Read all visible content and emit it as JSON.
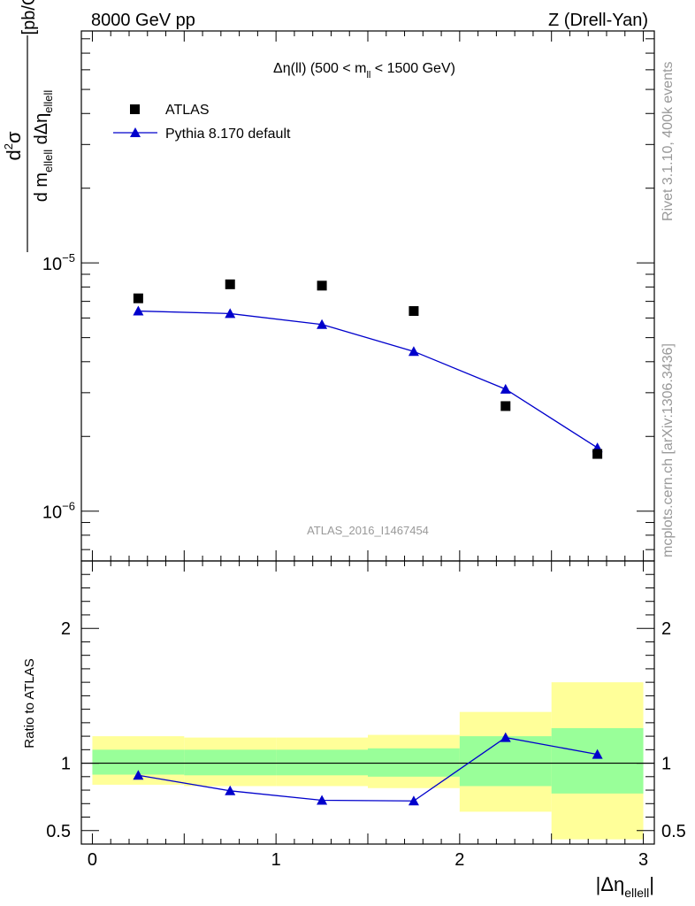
{
  "header": {
    "left": "8000 GeV pp",
    "right": "Z (Drell-Yan)"
  },
  "side_labels": {
    "rivet": "Rivet 3.1.10,  400k events",
    "source": "mcplots.cern.ch [arXiv:1306.3436]"
  },
  "watermark": "ATLAS_2016_I1467454",
  "chart_data": [
    {
      "type": "scatter",
      "panel": "main",
      "title_parts": {
        "main": "Δη(ll) (500 < m",
        "sub": "ll",
        "tail": " < 1500 GeV)"
      },
      "ylabel_parts": {
        "numer": "d",
        "numer_sup": "2",
        "numer_tail": "σ",
        "denom_a": "d m",
        "denom_a_sub": "ellell",
        "denom_b": " dΔη",
        "denom_b_sub": "ellell",
        "units": "[pb/GeV]"
      },
      "yscale": "log",
      "ylim": [
        6.3e-07,
        8.6e-05
      ],
      "xlim": [
        -0.06,
        3.06
      ],
      "ytick_labels": [
        {
          "value": 1e-06,
          "base": "10",
          "exp": "−6"
        },
        {
          "value": 1e-05,
          "base": "10",
          "exp": "−5"
        }
      ],
      "legend_position": "top-left",
      "series": [
        {
          "name": "ATLAS",
          "marker": "square",
          "color": "#000000",
          "x": [
            0.25,
            0.75,
            1.25,
            1.75,
            2.25,
            2.75
          ],
          "y": [
            7.2e-06,
            8.2e-06,
            8.1e-06,
            6.4e-06,
            2.65e-06,
            1.7e-06
          ]
        },
        {
          "name": "Pythia 8.170 default",
          "marker": "triangle",
          "color": "#0000cc",
          "x": [
            0.25,
            0.75,
            1.25,
            1.75,
            2.25,
            2.75
          ],
          "y": [
            6.4e-06,
            6.25e-06,
            5.65e-06,
            4.4e-06,
            3.1e-06,
            1.8e-06
          ]
        }
      ]
    },
    {
      "type": "line",
      "panel": "ratio",
      "ylabel": "Ratio to ATLAS",
      "xlabel_parts": {
        "main": "|Δη",
        "sub": "ellell",
        "tail": "|"
      },
      "ylim": [
        0.4,
        2.5
      ],
      "xlim": [
        -0.06,
        3.06
      ],
      "reference_line": 1,
      "ytick_labels": [
        "0.5",
        "1",
        "2"
      ],
      "ytick_values": [
        0.5,
        1,
        2
      ],
      "xtick_labels": [
        "0",
        "1",
        "2",
        "3"
      ],
      "xtick_values": [
        0,
        1,
        2,
        3
      ],
      "bins": [
        {
          "lo": 0.0,
          "hi": 0.5,
          "stat_lo": 0.915,
          "stat_hi": 1.1,
          "tot_lo": 0.84,
          "tot_hi": 1.2
        },
        {
          "lo": 0.5,
          "hi": 1.0,
          "stat_lo": 0.91,
          "stat_hi": 1.1,
          "tot_lo": 0.83,
          "tot_hi": 1.19
        },
        {
          "lo": 1.0,
          "hi": 1.5,
          "stat_lo": 0.91,
          "stat_hi": 1.1,
          "tot_lo": 0.83,
          "tot_hi": 1.19
        },
        {
          "lo": 1.5,
          "hi": 2.0,
          "stat_lo": 0.9,
          "stat_hi": 1.11,
          "tot_lo": 0.815,
          "tot_hi": 1.21
        },
        {
          "lo": 2.0,
          "hi": 2.5,
          "stat_lo": 0.83,
          "stat_hi": 1.2,
          "tot_lo": 0.64,
          "tot_hi": 1.38
        },
        {
          "lo": 2.5,
          "hi": 3.0,
          "stat_lo": 0.775,
          "stat_hi": 1.26,
          "tot_lo": 0.435,
          "tot_hi": 1.6
        }
      ],
      "colors": {
        "stat": "#99ff99",
        "total": "#ffff99",
        "line": "#0000cc"
      },
      "series": [
        {
          "name": "Pythia 8.170 default",
          "x": [
            0.25,
            0.75,
            1.25,
            1.75,
            2.25,
            2.75
          ],
          "y": [
            0.91,
            0.795,
            0.725,
            0.72,
            1.19,
            1.065
          ]
        }
      ]
    }
  ]
}
